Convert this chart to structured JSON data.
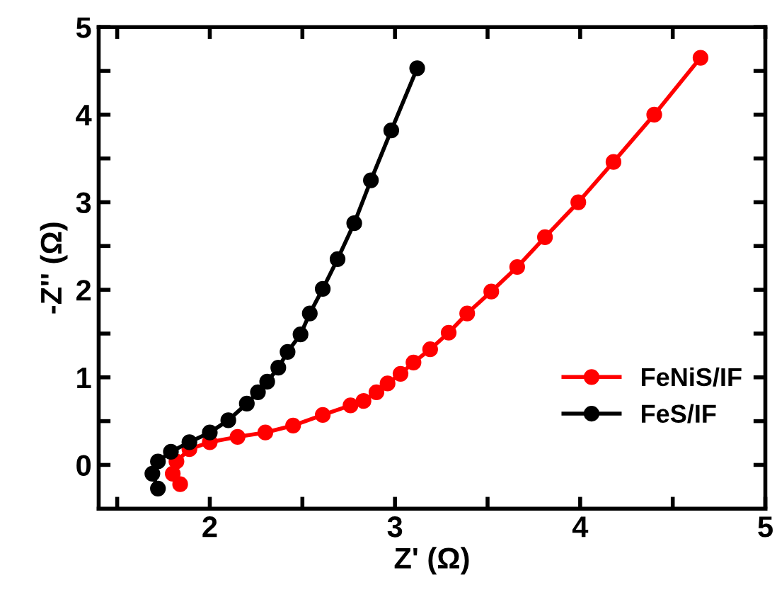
{
  "chart_data": {
    "type": "line",
    "xlabel": "Z' (Ω)",
    "ylabel": "-Z'' (Ω)",
    "xlim": [
      1.4,
      5
    ],
    "ylim": [
      -0.5,
      5
    ],
    "xticks": [
      {
        "value": 1.5,
        "label": null
      },
      2,
      {
        "value": 2.5,
        "label": null
      },
      3,
      {
        "value": 3.5,
        "label": null
      },
      4,
      {
        "value": 4.5,
        "label": null
      },
      5
    ],
    "yticks": [
      0,
      {
        "value": 0.5,
        "label": null
      },
      1,
      {
        "value": 1.5,
        "label": null
      },
      2,
      {
        "value": 2.5,
        "label": null
      },
      3,
      {
        "value": 3.5,
        "label": null
      },
      4,
      {
        "value": 4.5,
        "label": null
      },
      5
    ],
    "marker": "circle",
    "line_style": "solid",
    "legend": "bottom right",
    "grid": false,
    "series": [
      {
        "name": "FeNiS/IF",
        "color": "#ff0000",
        "x": [
          1.84,
          1.8,
          1.82,
          1.89,
          2.0,
          2.15,
          2.3,
          2.45,
          2.61,
          2.76,
          2.83,
          2.9,
          2.96,
          3.03,
          3.1,
          3.19,
          3.29,
          3.39,
          3.52,
          3.66,
          3.81,
          3.99,
          4.18,
          4.4,
          4.65
        ],
        "values": [
          -0.22,
          -0.1,
          0.04,
          0.18,
          0.26,
          0.32,
          0.37,
          0.45,
          0.57,
          0.68,
          0.73,
          0.83,
          0.93,
          1.04,
          1.17,
          1.32,
          1.51,
          1.73,
          1.98,
          2.26,
          2.6,
          3.0,
          3.46,
          4.0,
          4.65
        ]
      },
      {
        "name": "FeS/IF",
        "color": "#000000",
        "x": [
          1.72,
          1.69,
          1.72,
          1.79,
          1.89,
          2.0,
          2.1,
          2.2,
          2.26,
          2.31,
          2.37,
          2.42,
          2.49,
          2.54,
          2.61,
          2.69,
          2.78,
          2.87,
          2.98,
          3.12
        ],
        "values": [
          -0.27,
          -0.1,
          0.04,
          0.15,
          0.26,
          0.37,
          0.51,
          0.7,
          0.83,
          0.95,
          1.11,
          1.29,
          1.49,
          1.73,
          2.01,
          2.35,
          2.76,
          3.25,
          3.82,
          4.53
        ]
      }
    ]
  }
}
